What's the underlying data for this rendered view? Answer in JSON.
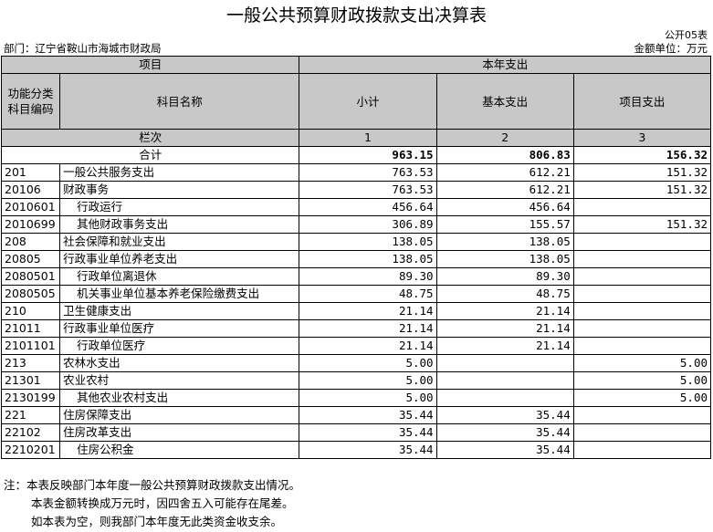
{
  "title": "一般公共预算财政拨款支出决算表",
  "form_no": "公开05表",
  "dept_label": "部门：辽宁省鞍山市海城市财政局",
  "unit_label": "金额单位：万元",
  "headers": {
    "item": "项目",
    "current_year": "本年支出",
    "code": "功能分类科目编码",
    "name": "科目名称",
    "subtotal": "小计",
    "basic": "基本支出",
    "project": "项目支出",
    "column": "栏次",
    "col1": "1",
    "col2": "2",
    "col3": "3"
  },
  "total": {
    "label": "合计",
    "subtotal": "963.15",
    "basic": "806.83",
    "project": "156.32"
  },
  "rows": [
    {
      "code": "201",
      "name": "一般公共服务支出",
      "subtotal": "763.53",
      "basic": "612.21",
      "project": "151.32",
      "indent": false
    },
    {
      "code": "20106",
      "name": "财政事务",
      "subtotal": "763.53",
      "basic": "612.21",
      "project": "151.32",
      "indent": false
    },
    {
      "code": "2010601",
      "name": "行政运行",
      "subtotal": "456.64",
      "basic": "456.64",
      "project": "",
      "indent": true
    },
    {
      "code": "2010699",
      "name": "其他财政事务支出",
      "subtotal": "306.89",
      "basic": "155.57",
      "project": "151.32",
      "indent": true
    },
    {
      "code": "208",
      "name": "社会保障和就业支出",
      "subtotal": "138.05",
      "basic": "138.05",
      "project": "",
      "indent": false
    },
    {
      "code": "20805",
      "name": "行政事业单位养老支出",
      "subtotal": "138.05",
      "basic": "138.05",
      "project": "",
      "indent": false
    },
    {
      "code": "2080501",
      "name": "行政单位离退休",
      "subtotal": "89.30",
      "basic": "89.30",
      "project": "",
      "indent": true
    },
    {
      "code": "2080505",
      "name": "机关事业单位基本养老保险缴费支出",
      "subtotal": "48.75",
      "basic": "48.75",
      "project": "",
      "indent": true
    },
    {
      "code": "210",
      "name": "卫生健康支出",
      "subtotal": "21.14",
      "basic": "21.14",
      "project": "",
      "indent": false
    },
    {
      "code": "21011",
      "name": "行政事业单位医疗",
      "subtotal": "21.14",
      "basic": "21.14",
      "project": "",
      "indent": false
    },
    {
      "code": "2101101",
      "name": "行政单位医疗",
      "subtotal": "21.14",
      "basic": "21.14",
      "project": "",
      "indent": true
    },
    {
      "code": "213",
      "name": "农林水支出",
      "subtotal": "5.00",
      "basic": "",
      "project": "5.00",
      "indent": false
    },
    {
      "code": "21301",
      "name": "农业农村",
      "subtotal": "5.00",
      "basic": "",
      "project": "5.00",
      "indent": false
    },
    {
      "code": "2130199",
      "name": "其他农业农村支出",
      "subtotal": "5.00",
      "basic": "",
      "project": "5.00",
      "indent": true
    },
    {
      "code": "221",
      "name": "住房保障支出",
      "subtotal": "35.44",
      "basic": "35.44",
      "project": "",
      "indent": false
    },
    {
      "code": "22102",
      "name": "住房改革支出",
      "subtotal": "35.44",
      "basic": "35.44",
      "project": "",
      "indent": false
    },
    {
      "code": "2210201",
      "name": "住房公积金",
      "subtotal": "35.44",
      "basic": "35.44",
      "project": "",
      "indent": true
    }
  ],
  "notes": [
    "注：本表反映部门本年度一般公共预算财政拨款支出情况。",
    "本表金额转换成万元时，因四舍五入可能存在尾差。",
    "如本表为空，则我部门本年度无此类资金收支余。"
  ]
}
